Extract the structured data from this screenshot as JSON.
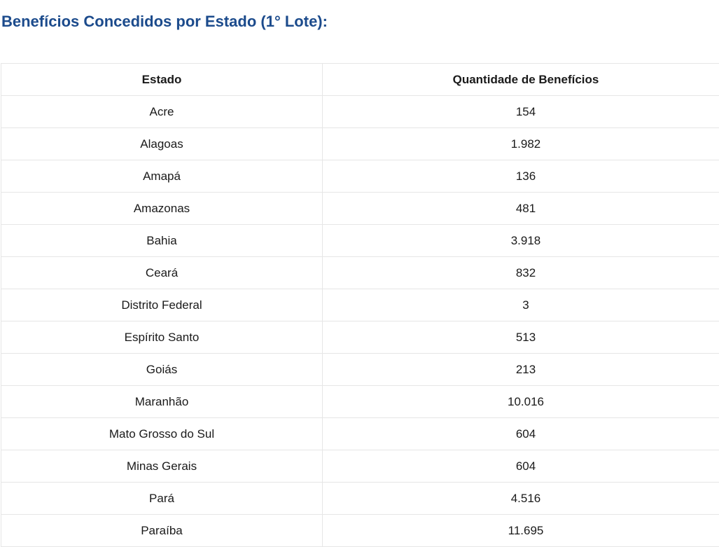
{
  "title": "Benefícios Concedidos por Estado (1° Lote):",
  "table": {
    "headers": [
      "Estado",
      "Quantidade de Benefícios"
    ],
    "rows": [
      [
        "Acre",
        "154"
      ],
      [
        "Alagoas",
        "1.982"
      ],
      [
        "Amapá",
        "136"
      ],
      [
        "Amazonas",
        "481"
      ],
      [
        "Bahia",
        "3.918"
      ],
      [
        "Ceará",
        "832"
      ],
      [
        "Distrito Federal",
        "3"
      ],
      [
        "Espírito Santo",
        "513"
      ],
      [
        "Goiás",
        "213"
      ],
      [
        "Maranhão",
        "10.016"
      ],
      [
        "Mato Grosso do Sul",
        "604"
      ],
      [
        "Minas Gerais",
        "604"
      ],
      [
        "Pará",
        "4.516"
      ],
      [
        "Paraíba",
        "11.695"
      ]
    ]
  },
  "colors": {
    "title": "#1c4b8c",
    "border": "#e6e6e6"
  }
}
